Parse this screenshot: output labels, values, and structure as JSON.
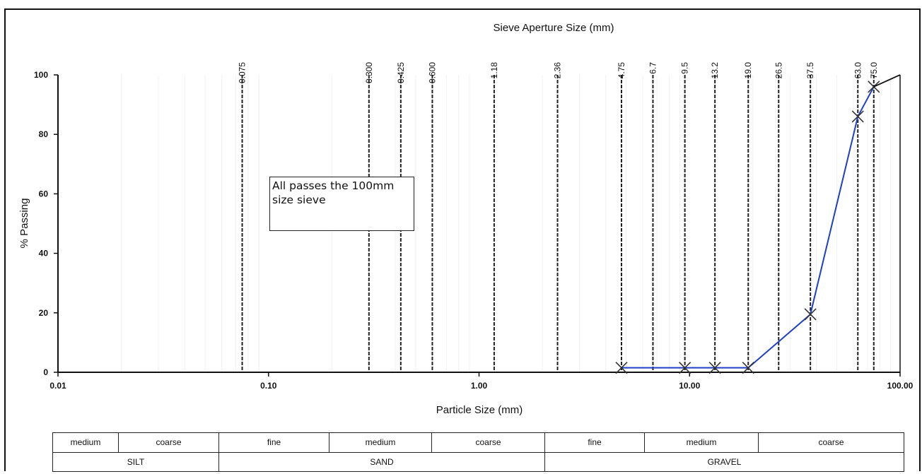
{
  "chart_data": {
    "type": "line",
    "x_scale": "log",
    "xlim": [
      0.01,
      100
    ],
    "ylim": [
      0,
      100
    ],
    "top_axis_label": "Sieve Aperture Size (mm)",
    "xlabel": "Particle Size (mm)",
    "ylabel": "% Passing",
    "x_tick_values": [
      0.01,
      0.1,
      1,
      10,
      100
    ],
    "x_tick_labels": [
      "0.01",
      "0.10",
      "1.00",
      "10.00",
      "100.00"
    ],
    "y_ticks": [
      0,
      20,
      40,
      60,
      80,
      100
    ],
    "sieve_sizes": [
      0.075,
      0.3,
      0.425,
      0.6,
      1.18,
      2.36,
      4.75,
      6.7,
      9.5,
      13.2,
      19.0,
      26.5,
      37.5,
      63.0,
      75.0
    ],
    "sieve_labels": [
      "0.075",
      "0.300",
      "0.425",
      "0.600",
      "1.18",
      "2.36",
      "4.75",
      "6.7",
      "9.5",
      "13.2",
      "19.0",
      "26.5",
      "37.5",
      "63.0",
      "75.0"
    ],
    "series": [
      {
        "color": "#1f3fc4",
        "x": [
          4.75,
          9.5,
          13.2,
          19.0,
          37.5,
          63.0,
          75.0
        ],
        "y": [
          1.5,
          1.5,
          1.5,
          1.5,
          19.5,
          86,
          96
        ]
      }
    ],
    "tail": {
      "x": [
        75.0,
        100
      ],
      "y": [
        96,
        100
      ],
      "color": "#111111"
    },
    "annotation": "All passes the 100mm size sieve"
  },
  "classification": {
    "subdivisions": [
      "medium",
      "coarse",
      "fine",
      "medium",
      "coarse",
      "fine",
      "medium",
      "coarse"
    ],
    "groups": [
      "SILT",
      "SAND",
      "GRAVEL"
    ]
  }
}
